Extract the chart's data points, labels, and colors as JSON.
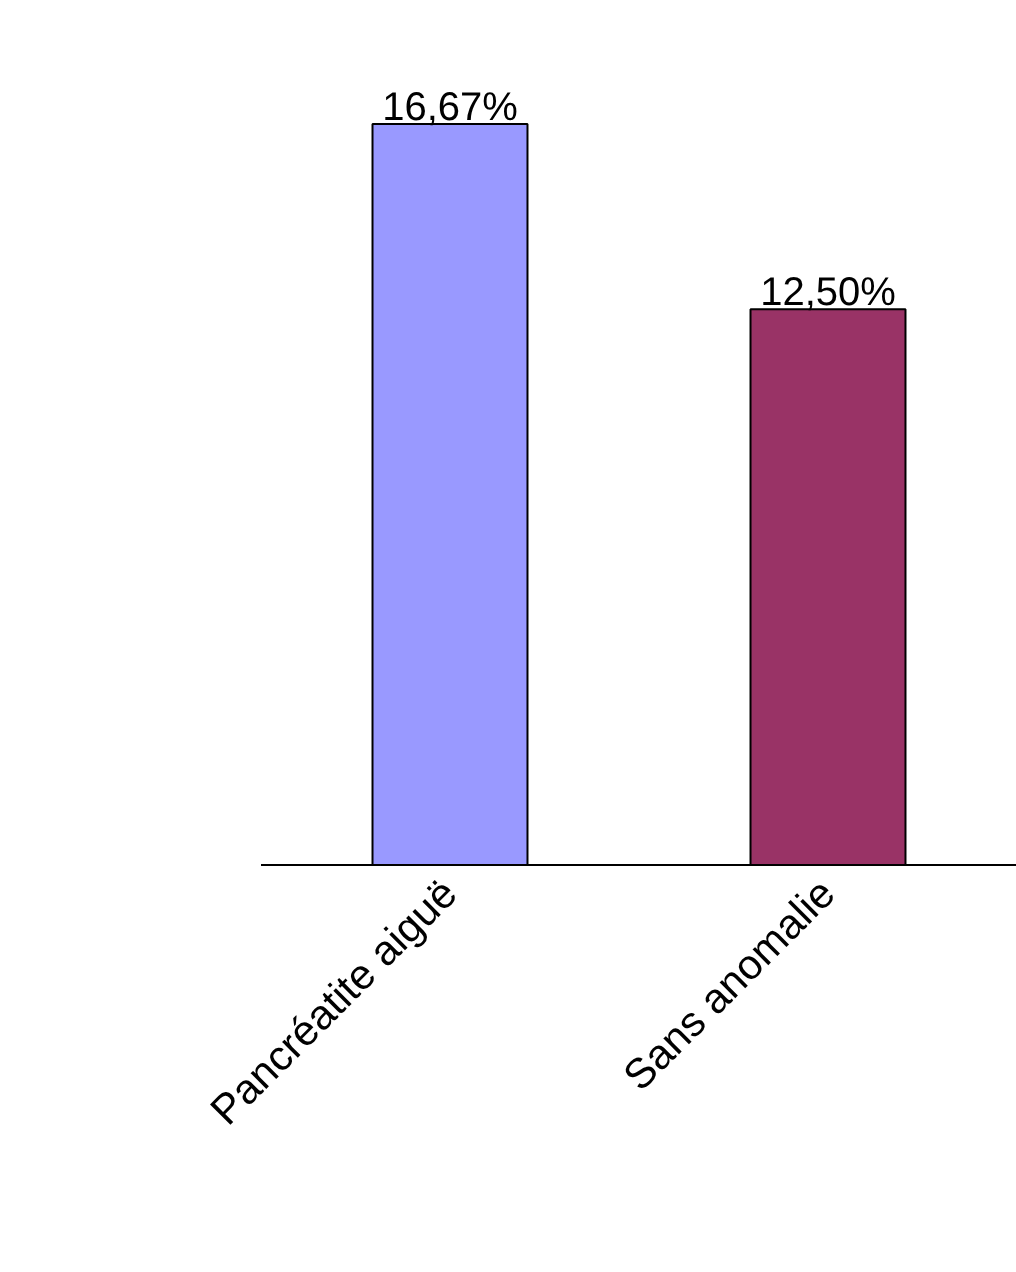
{
  "chart_data": {
    "type": "bar",
    "categories": [
      "Pancréatite aiguë",
      "Sans anomalie"
    ],
    "values": [
      16.67,
      12.5
    ],
    "colors": [
      "#9999ff",
      "#993366"
    ],
    "value_labels": [
      "16,67%",
      "12,50%"
    ],
    "grid": false
  }
}
